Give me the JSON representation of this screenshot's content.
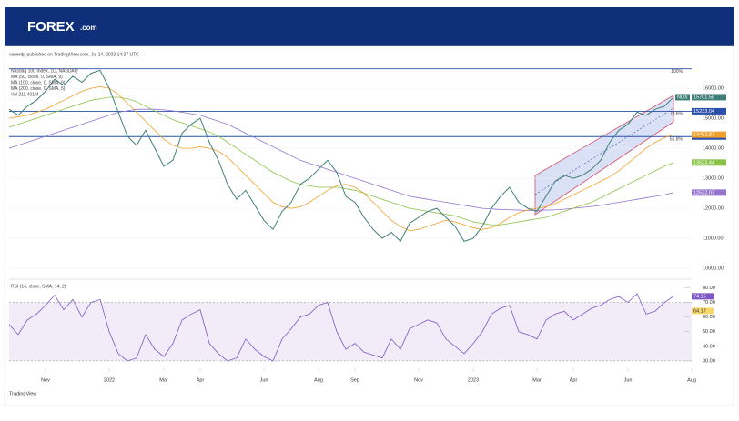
{
  "header": {
    "logo": "FOREX",
    "logo_suffix": ".com"
  },
  "chart_data": {
    "type": "line",
    "published": "vanerdp published on TradingView.com, Jul 14, 2023 14:37 UTC",
    "ticker": "NDX",
    "volume": "Vol 211.401M",
    "categories": [
      null,
      null,
      null,
      null,
      "Nov",
      null,
      null,
      null,
      null,
      null,
      null,
      "2022",
      null,
      null,
      null,
      null,
      null,
      "Mar",
      null,
      null,
      null,
      "Apr",
      null,
      null,
      null,
      null,
      null,
      null,
      "Jun",
      null,
      null,
      null,
      null,
      null,
      "Aug",
      null,
      null,
      null,
      "Sep",
      null,
      null,
      null,
      null,
      null,
      null,
      "Nov",
      null,
      null,
      null,
      null,
      null,
      "2023",
      null,
      null,
      null,
      null,
      null,
      null,
      "Mar",
      null,
      null,
      null,
      "Apr",
      null,
      null,
      null,
      null,
      null,
      "Jun",
      null,
      null,
      null,
      null,
      null,
      null,
      "Aug",
      null
    ],
    "series": [
      {
        "name": "Nasdaq 100 Index, 1D, NASDAQ",
        "color": "#3f7f78",
        "values": [
          15300,
          15100,
          15400,
          15600,
          15900,
          16300,
          16100,
          16400,
          16200,
          16500,
          16600,
          16000,
          15200,
          14400,
          14100,
          14600,
          14000,
          13400,
          13600,
          14500,
          14800,
          15000,
          14200,
          13600,
          12800,
          12300,
          12600,
          12100,
          11600,
          11300,
          11900,
          12200,
          12800,
          13000,
          13300,
          13600,
          13200,
          12400,
          12200,
          11700,
          11300,
          11000,
          11200,
          10900,
          11500,
          11700,
          11900,
          12000,
          11700,
          11400,
          10900,
          11000,
          11400,
          12000,
          12400,
          12700,
          12200,
          12000,
          11900,
          12400,
          12900,
          13100,
          13000,
          13100,
          13300,
          13600,
          14200,
          14600,
          14800,
          15200,
          15100,
          15300,
          15400,
          15701.58,
          null,
          null,
          null
        ]
      },
      {
        "name": "MA (50, close, 0, SMA, 9)",
        "color": "#f0a030",
        "values": [
          15000,
          15050,
          15100,
          15200,
          15300,
          15450,
          15600,
          15750,
          15900,
          16000,
          16050,
          16000,
          15800,
          15500,
          15200,
          14900,
          14600,
          14300,
          14100,
          14000,
          14000,
          14050,
          14000,
          13900,
          13700,
          13400,
          13100,
          12800,
          12500,
          12200,
          12050,
          12000,
          12050,
          12200,
          12400,
          12600,
          12750,
          12800,
          12700,
          12500,
          12200,
          11900,
          11600,
          11400,
          11250,
          11300,
          11400,
          11500,
          11600,
          11550,
          11450,
          11350,
          11300,
          11350,
          11500,
          11700,
          11850,
          11950,
          12000,
          12050,
          12150,
          12300,
          12450,
          12600,
          12750,
          12900,
          13050,
          13250,
          13500,
          13750,
          14000,
          14200,
          14350,
          14452.87,
          null,
          null,
          null
        ]
      },
      {
        "name": "MA (100, close, 0, SMA, 9)",
        "color": "#8bc34a",
        "values": [
          14700,
          14800,
          14900,
          15000,
          15100,
          15200,
          15300,
          15400,
          15500,
          15600,
          15650,
          15700,
          15700,
          15650,
          15550,
          15400,
          15250,
          15100,
          14950,
          14850,
          14750,
          14650,
          14550,
          14400,
          14200,
          14000,
          13800,
          13600,
          13400,
          13200,
          13050,
          12900,
          12800,
          12750,
          12700,
          12700,
          12700,
          12650,
          12600,
          12500,
          12400,
          12300,
          12200,
          12100,
          12000,
          11950,
          11900,
          11850,
          11800,
          11750,
          11650,
          11550,
          11500,
          11450,
          11450,
          11500,
          11550,
          11600,
          11650,
          11700,
          11800,
          11900,
          12000,
          12100,
          12200,
          12350,
          12500,
          12650,
          12800,
          12950,
          13100,
          13250,
          13400,
          13523.44,
          null,
          null,
          null
        ]
      },
      {
        "name": "MA (200, close, 0, SMA, 5)",
        "color": "#9575cd",
        "values": [
          14000,
          14100,
          14200,
          14300,
          14400,
          14500,
          14600,
          14700,
          14800,
          14900,
          15000,
          15100,
          15200,
          15250,
          15300,
          15300,
          15300,
          15280,
          15250,
          15200,
          15150,
          15100,
          15000,
          14900,
          14800,
          14650,
          14500,
          14350,
          14200,
          14050,
          13900,
          13750,
          13600,
          13500,
          13400,
          13300,
          13200,
          13100,
          13000,
          12900,
          12800,
          12700,
          12600,
          12500,
          12400,
          12350,
          12300,
          12250,
          12200,
          12150,
          12100,
          12050,
          12000,
          11980,
          11960,
          11950,
          11940,
          11930,
          11930,
          11940,
          11950,
          11970,
          12000,
          12030,
          12060,
          12100,
          12150,
          12200,
          12250,
          12300,
          12350,
          12400,
          12450,
          12522.07,
          null,
          null,
          null
        ]
      }
    ],
    "ylim": [
      9700,
      16700
    ],
    "yticks": [
      {
        "value": 10000,
        "label": "10000.00"
      },
      {
        "value": 11000,
        "label": "11000.00"
      },
      {
        "value": 12000,
        "label": "12000.00"
      },
      {
        "value": 13000,
        "label": "13000.00"
      },
      {
        "value": 14000,
        "label": "14000.00"
      },
      {
        "value": 15000,
        "label": "15000.00"
      },
      {
        "value": 16000,
        "label": "16000.00"
      }
    ],
    "levels": [
      {
        "value": 16650,
        "label": "100%",
        "show_price": false
      },
      {
        "value": 15233.04,
        "label": "78.6%",
        "show_price": true
      },
      {
        "value": 14389.36,
        "label": "61.8%",
        "show_price": true
      }
    ],
    "rsi": {
      "name": "RSI (14, close, SMA, 14, 2)",
      "color": "#7e57c2",
      "ma_last": 64.17,
      "bands": [
        30,
        70
      ],
      "ylim": [
        25,
        84
      ],
      "yticks": [
        {
          "value": 30,
          "label": "30.00"
        },
        {
          "value": 40,
          "label": "40.00"
        },
        {
          "value": 50,
          "label": "50.00"
        },
        {
          "value": 60,
          "label": "60.00"
        },
        {
          "value": 70,
          "label": "70.00"
        },
        {
          "value": 80,
          "label": "80.00"
        }
      ],
      "values": [
        55,
        48,
        58,
        62,
        68,
        75,
        65,
        72,
        60,
        70,
        72,
        50,
        35,
        30,
        32,
        48,
        38,
        33,
        42,
        58,
        62,
        65,
        42,
        35,
        30,
        32,
        45,
        38,
        33,
        30,
        45,
        52,
        60,
        62,
        68,
        70,
        50,
        38,
        42,
        36,
        34,
        32,
        45,
        38,
        52,
        55,
        58,
        56,
        45,
        40,
        35,
        42,
        50,
        62,
        66,
        68,
        50,
        48,
        45,
        58,
        62,
        64,
        58,
        62,
        66,
        68,
        72,
        74,
        70,
        76,
        62,
        64,
        70,
        74.15,
        null,
        null,
        null
      ]
    }
  },
  "footer": "TradingView"
}
